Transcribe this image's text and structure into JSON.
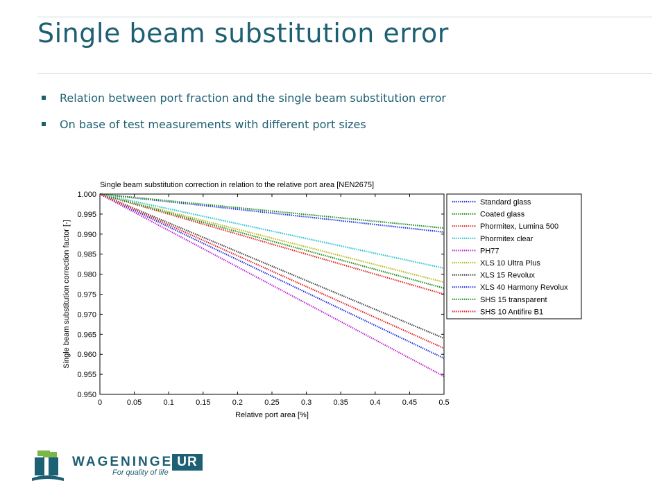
{
  "slide": {
    "title": "Single beam substitution error",
    "bullets": [
      "Relation between port fraction and the single beam substitution error",
      "On base of test measurements with different port sizes"
    ]
  },
  "logo": {
    "name": "WAGENINGEN",
    "ur": "UR",
    "tagline": "For quality of life"
  },
  "chart_data": {
    "type": "line",
    "title": "Single beam substitution correction in relation to the relative port area [NEN2675]",
    "xlabel": "Relative port area [%]",
    "ylabel": "Single beam substitution correction factor [-]",
    "xlim": [
      0,
      0.5
    ],
    "ylim": [
      0.95,
      1.0
    ],
    "xticks": [
      "0",
      "0.05",
      "0.1",
      "0.15",
      "0.2",
      "0.25",
      "0.3",
      "0.35",
      "0.4",
      "0.45",
      "0.5"
    ],
    "yticks": [
      "0.950",
      "0.955",
      "0.960",
      "0.965",
      "0.970",
      "0.975",
      "0.980",
      "0.985",
      "0.990",
      "0.995",
      "1.000"
    ],
    "grid": false,
    "legend_position": "outside-right",
    "line_style": "dotted",
    "x": [
      0,
      0.5
    ],
    "series": [
      {
        "name": "Standard glass",
        "color": "#1f2fe0",
        "values": [
          1.0,
          0.9905
        ]
      },
      {
        "name": "Coated glass",
        "color": "#1a8a1a",
        "values": [
          1.0,
          0.9915
        ]
      },
      {
        "name": "Phormitex, Lumina 500",
        "color": "#e02020",
        "values": [
          1.0,
          0.975
        ]
      },
      {
        "name": "Phormitex clear",
        "color": "#20c0d0",
        "values": [
          1.0,
          0.9815
        ]
      },
      {
        "name": "PH77",
        "color": "#c020d0",
        "values": [
          1.0,
          0.9545
        ]
      },
      {
        "name": "XLS 10 Ultra Plus",
        "color": "#b8b818",
        "values": [
          1.0,
          0.978
        ]
      },
      {
        "name": "XLS 15 Revolux",
        "color": "#404040",
        "values": [
          1.0,
          0.964
        ]
      },
      {
        "name": "XLS 40 Harmony Revolux",
        "color": "#1f2fe0",
        "values": [
          1.0,
          0.959
        ]
      },
      {
        "name": "SHS 15 transparent",
        "color": "#1a8a1a",
        "values": [
          1.0,
          0.9765
        ]
      },
      {
        "name": "SHS 10 Antifire B1",
        "color": "#e02020",
        "values": [
          1.0,
          0.9615
        ]
      }
    ]
  }
}
